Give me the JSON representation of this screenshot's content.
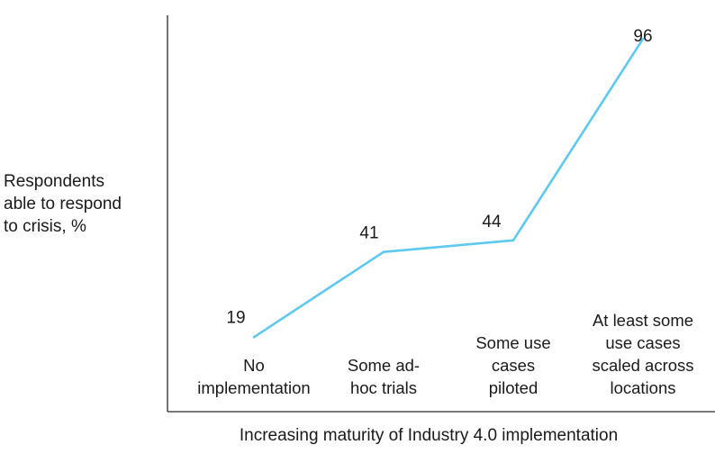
{
  "chart_data": {
    "type": "line",
    "categories": [
      [
        "No",
        "implementation"
      ],
      [
        "Some ad-",
        "hoc trials"
      ],
      [
        "Some use",
        "cases",
        "piloted"
      ],
      [
        "At least some",
        "use cases",
        "scaled across",
        "locations"
      ]
    ],
    "series": [
      {
        "values": [
          19,
          41,
          44,
          96
        ],
        "color": "#5ec8f0"
      }
    ],
    "data_labels": [
      "19",
      "41",
      "44",
      "96"
    ],
    "ylabel": [
      "Respondents",
      "able to respond",
      "to crisis, %"
    ],
    "xlabel": "Increasing maturity of Industry 4.0 implementation",
    "title": "",
    "ylim": [
      0,
      100
    ],
    "grid": false,
    "legend": "none",
    "axis_color": "#2a2a2a"
  }
}
